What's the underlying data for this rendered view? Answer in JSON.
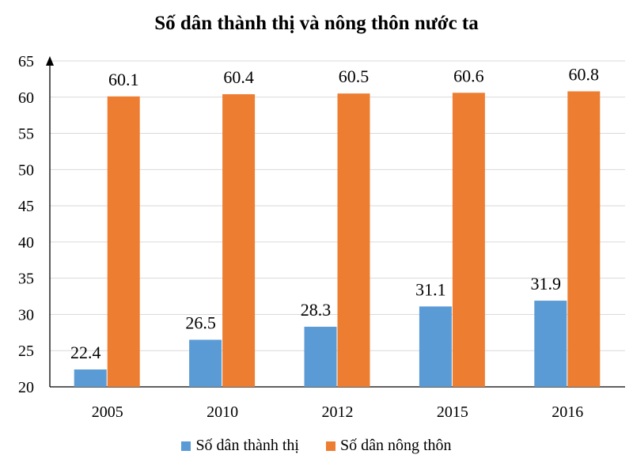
{
  "chart_data": {
    "type": "bar",
    "title": "Số dân thành thị và nông thôn nước ta",
    "xlabel": "",
    "ylabel": "",
    "categories": [
      "2005",
      "2010",
      "2012",
      "2015",
      "2016"
    ],
    "ylim": [
      20,
      65
    ],
    "yticks": [
      20,
      25,
      30,
      35,
      40,
      45,
      50,
      55,
      60,
      65
    ],
    "grid": "horizontal",
    "legend_position": "bottom",
    "series": [
      {
        "name": "Số dân thành thị",
        "color": "#5B9BD5",
        "values": [
          22.4,
          26.5,
          28.3,
          31.1,
          31.9
        ]
      },
      {
        "name": "Số dân nông thôn",
        "color": "#ED7D31",
        "values": [
          60.1,
          60.4,
          60.5,
          60.6,
          60.8
        ]
      }
    ]
  }
}
